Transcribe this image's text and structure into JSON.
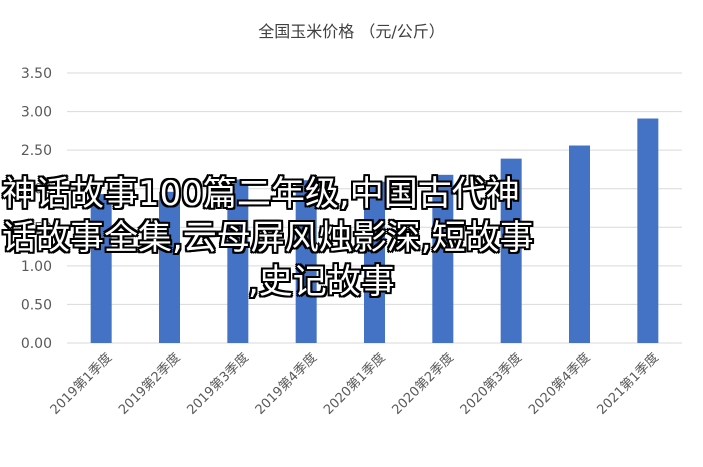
{
  "chart_data": {
    "type": "bar",
    "title": "全国玉米价格 （元/公斤）",
    "xlabel": "",
    "ylabel": "",
    "categories": [
      "2019第1季度",
      "2019第2季度",
      "2019第3季度",
      "2019第4季度",
      "2020第1季度",
      "2020第2季度",
      "2020第3季度",
      "2020第4季度",
      "2021第1季度"
    ],
    "values": [
      1.93,
      1.96,
      2.12,
      2.11,
      2.09,
      2.18,
      2.39,
      2.56,
      2.91
    ],
    "ylim": [
      0,
      3.5
    ],
    "yticks": [
      "0.00",
      "0.50",
      "1.00",
      "1.50",
      "2.00",
      "2.50",
      "3.00",
      "3.50"
    ],
    "ytick_values": [
      0,
      0.5,
      1.0,
      1.5,
      2.0,
      2.5,
      3.0,
      3.5
    ],
    "grid": true,
    "bar_color": "#4472C4",
    "grid_color": "#D9D9D9",
    "axis_text_color": "#595959"
  },
  "overlay": {
    "line1": "神话故事100篇二年级,中国古代神",
    "line2": "话故事全集,云母屏风烛影深,短故事",
    "line3": ",史记故事"
  }
}
